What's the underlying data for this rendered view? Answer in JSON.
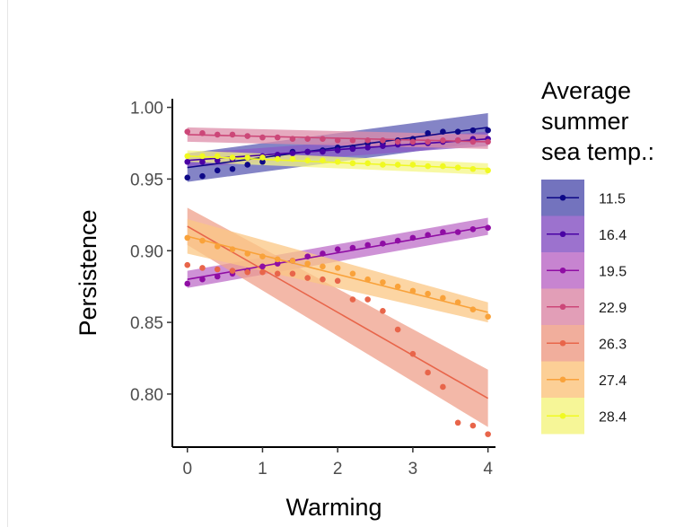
{
  "chart_data": {
    "type": "scatter",
    "xlabel": "Warming",
    "ylabel": "Persistence",
    "xlim": [
      -0.2,
      4.1
    ],
    "ylim": [
      0.763,
      1.006
    ],
    "x_ticks": [
      0,
      1,
      2,
      3,
      4
    ],
    "y_ticks": [
      0.8,
      0.85,
      0.9,
      0.95,
      1.0
    ],
    "y_tick_labels": [
      "0.80",
      "0.85",
      "0.90",
      "0.95",
      "1.00"
    ],
    "grid": false,
    "legend_position": "right",
    "legend_title_lines": [
      "Average",
      "summer",
      "sea temp.:"
    ],
    "x": [
      0,
      0.2,
      0.4,
      0.6,
      0.8,
      1.0,
      1.2,
      1.4,
      1.6,
      1.8,
      2.0,
      2.2,
      2.4,
      2.6,
      2.8,
      3.0,
      3.2,
      3.4,
      3.6,
      3.8,
      4.0
    ],
    "series": [
      {
        "name": "11.5",
        "color": "#0d0887",
        "band": "#5b5bb3",
        "fit": [
          0.958,
          0.986
        ],
        "ci": [
          0.01,
          0.01
        ],
        "values": [
          0.951,
          0.952,
          0.956,
          0.957,
          0.96,
          0.962,
          0.966,
          0.969,
          0.969,
          0.97,
          0.972,
          0.972,
          0.975,
          0.975,
          0.977,
          0.978,
          0.982,
          0.983,
          0.983,
          0.984,
          0.984
        ]
      },
      {
        "name": "16.4",
        "color": "#4a02a4",
        "band": "#8b59c6",
        "fit": [
          0.963,
          0.978
        ],
        "ci": [
          0.005,
          0.005
        ],
        "values": [
          0.962,
          0.962,
          0.963,
          0.964,
          0.965,
          0.966,
          0.967,
          0.968,
          0.969,
          0.969,
          0.97,
          0.971,
          0.972,
          0.973,
          0.974,
          0.975,
          0.975,
          0.976,
          0.977,
          0.978,
          0.978
        ]
      },
      {
        "name": "19.5",
        "color": "#8f0da4",
        "band": "#bd6ec8",
        "fit": [
          0.88,
          0.917
        ],
        "ci": [
          0.006,
          0.006
        ],
        "values": [
          0.877,
          0.88,
          0.882,
          0.884,
          0.886,
          0.889,
          0.891,
          0.893,
          0.896,
          0.898,
          0.901,
          0.902,
          0.904,
          0.905,
          0.907,
          0.909,
          0.911,
          0.913,
          0.913,
          0.915,
          0.916
        ]
      },
      {
        "name": "22.9",
        "color": "#cc4778",
        "band": "#dd8daa",
        "fit": [
          0.981,
          0.976
        ],
        "ci": [
          0.005,
          0.005
        ],
        "values": [
          0.983,
          0.982,
          0.981,
          0.981,
          0.98,
          0.979,
          0.979,
          0.978,
          0.978,
          0.978,
          0.977,
          0.977,
          0.977,
          0.977,
          0.976,
          0.976,
          0.976,
          0.977,
          0.977,
          0.976,
          0.976
        ]
      },
      {
        "name": "26.3",
        "color": "#e8654a",
        "band": "#efa08b",
        "fit": [
          0.917,
          0.797
        ],
        "ci": [
          0.013,
          0.02
        ],
        "values": [
          0.89,
          0.888,
          0.887,
          0.886,
          0.885,
          0.885,
          0.884,
          0.884,
          0.881,
          0.88,
          0.879,
          0.866,
          0.866,
          0.858,
          0.845,
          0.828,
          0.815,
          0.805,
          0.78,
          0.778,
          0.772
        ]
      },
      {
        "name": "27.4",
        "color": "#f9a23a",
        "band": "#fbc784",
        "fit": [
          0.91,
          0.857
        ],
        "ci": [
          0.012,
          0.007
        ],
        "values": [
          0.909,
          0.907,
          0.903,
          0.901,
          0.898,
          0.896,
          0.894,
          0.893,
          0.891,
          0.889,
          0.888,
          0.884,
          0.88,
          0.878,
          0.875,
          0.872,
          0.87,
          0.867,
          0.864,
          0.859,
          0.854
        ]
      },
      {
        "name": "28.4",
        "color": "#f0f921",
        "band": "#f4f585",
        "fit": [
          0.966,
          0.957
        ],
        "ci": [
          0.004,
          0.004
        ],
        "values": [
          0.966,
          0.966,
          0.966,
          0.965,
          0.965,
          0.965,
          0.964,
          0.964,
          0.963,
          0.963,
          0.962,
          0.961,
          0.961,
          0.96,
          0.96,
          0.96,
          0.959,
          0.959,
          0.958,
          0.957,
          0.956
        ]
      }
    ]
  }
}
